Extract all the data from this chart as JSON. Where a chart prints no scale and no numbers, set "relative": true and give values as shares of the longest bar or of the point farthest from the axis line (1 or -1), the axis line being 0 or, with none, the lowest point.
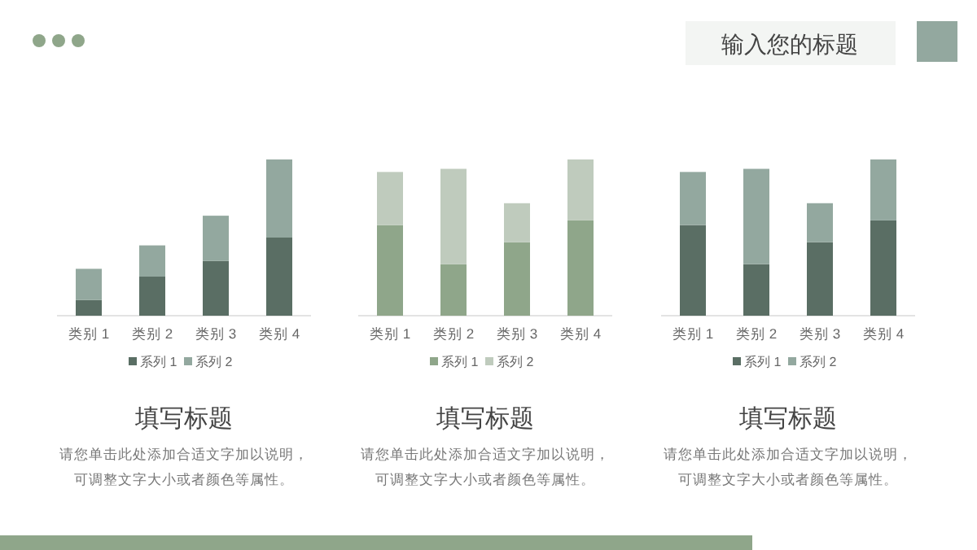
{
  "chart_data": [
    {
      "type": "other",
      "title": "输入您的标题"
    },
    {
      "type": "bar",
      "stacked": true,
      "relative": true,
      "legend": "bottom",
      "grid": false,
      "title": "填写标题",
      "annotations": [
        "请您单击此处添加合适文字加以说明，",
        "可调整文字大小或者颜色等属性。"
      ],
      "categories": [
        "类别 1",
        "类别 2",
        "类别 3",
        "类别 4"
      ],
      "series": [
        {
          "name": "系列 1",
          "color": "#5a6e64",
          "values": [
            0.1,
            0.25,
            0.35,
            0.5
          ]
        },
        {
          "name": "系列 2",
          "color": "#93a89f",
          "values": [
            0.2,
            0.2,
            0.29,
            0.5
          ]
        }
      ]
    },
    {
      "type": "bar",
      "stacked": true,
      "relative": true,
      "legend": "bottom",
      "grid": false,
      "title": "填写标题",
      "annotations": [
        "请您单击此处添加合适文字加以说明，",
        "可调整文字大小或者颜色等属性。"
      ],
      "categories": [
        "类别 1",
        "类别 2",
        "类别 3",
        "类别 4"
      ],
      "series": [
        {
          "name": "系列 1",
          "color": "#8fa68a",
          "values": [
            0.58,
            0.33,
            0.47,
            0.61
          ]
        },
        {
          "name": "系列 2",
          "color": "#bfcbbd",
          "values": [
            0.34,
            0.61,
            0.25,
            0.39
          ]
        }
      ]
    },
    {
      "type": "bar",
      "stacked": true,
      "relative": true,
      "legend": "bottom",
      "grid": false,
      "title": "填写标题",
      "annotations": [
        "请您单击此处添加合适文字加以说明，",
        "可调整文字大小或者颜色等属性。"
      ],
      "categories": [
        "类别 1",
        "类别 2",
        "类别 3",
        "类别 4"
      ],
      "series": [
        {
          "name": "系列 1",
          "color": "#5a6e64",
          "values": [
            0.58,
            0.33,
            0.47,
            0.61
          ]
        },
        {
          "name": "系列 2",
          "color": "#93a89f",
          "values": [
            0.34,
            0.61,
            0.25,
            0.39
          ]
        }
      ]
    }
  ]
}
